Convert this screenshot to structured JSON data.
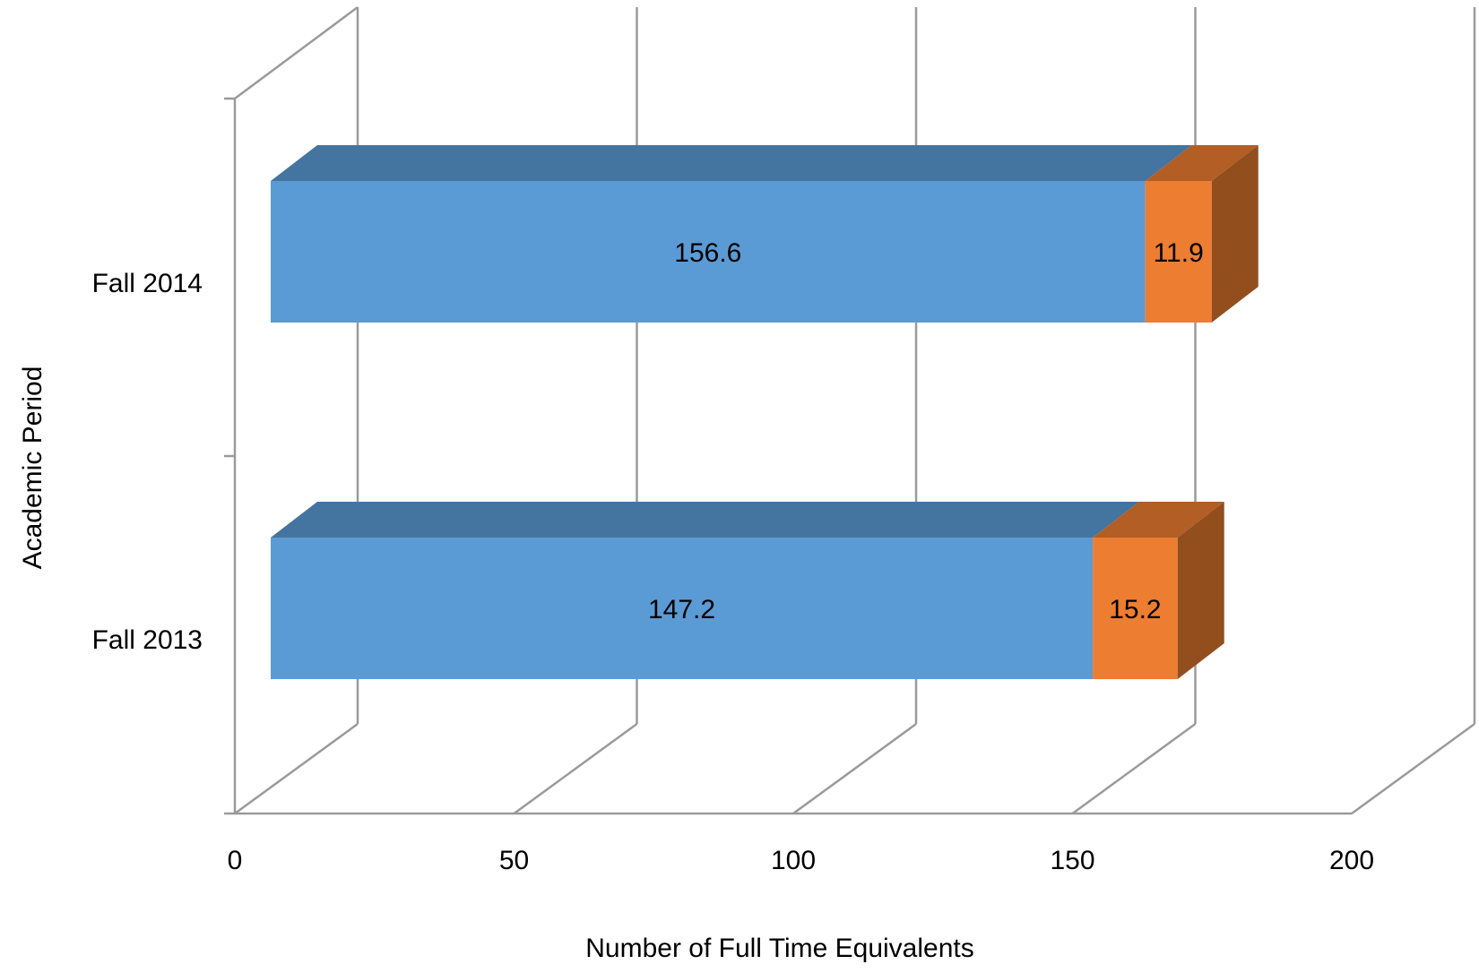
{
  "chart_data": {
    "type": "bar",
    "orientation": "horizontal",
    "stacked": true,
    "three_d": true,
    "categories": [
      "Fall 2013",
      "Fall 2014"
    ],
    "series": [
      {
        "values": [
          147.2,
          156.6
        ],
        "color": "#5b9bd5"
      },
      {
        "values": [
          15.2,
          11.9
        ],
        "color": "#ed7d31"
      }
    ],
    "xlabel": "Number of Full Time Equivalents",
    "ylabel": "Academic Period",
    "xlim": [
      0,
      200
    ],
    "xticks": [
      "0",
      "50",
      "100",
      "150",
      "200"
    ],
    "data_labels": [
      [
        "147.2",
        "156.6"
      ],
      [
        "15.2",
        "11.9"
      ]
    ],
    "grid": true,
    "legend": "none"
  }
}
